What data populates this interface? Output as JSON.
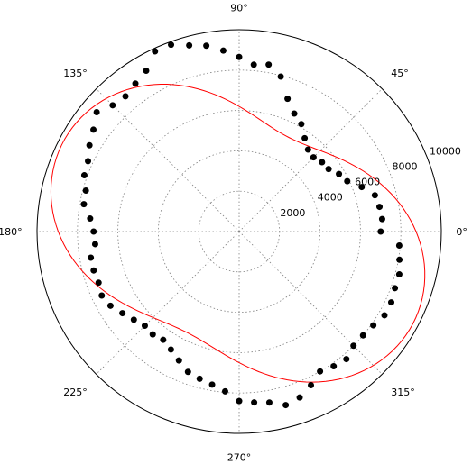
{
  "chart_data": {
    "type": "scatter",
    "projection": "polar",
    "title": "",
    "grid": true,
    "rmax": 10000,
    "angle_ticks": [
      0,
      45,
      90,
      135,
      180,
      225,
      270,
      315
    ],
    "angle_tick_labels": [
      "0°",
      "45°",
      "90°",
      "135°",
      "180°",
      "225°",
      "270°",
      "315°"
    ],
    "radial_ticks": [
      2000,
      4000,
      6000,
      8000,
      10000
    ],
    "radial_tick_labels": [
      "2000",
      "4000",
      "6000",
      "8000",
      "10000"
    ],
    "radial_label_angle_deg": 22.5,
    "series": [
      {
        "kind": "points",
        "color": "#000000",
        "theta_deg": [
          0,
          5,
          10,
          15,
          20,
          25,
          30,
          35,
          40,
          45,
          50,
          55,
          60,
          65,
          70,
          75,
          80,
          85,
          90,
          95,
          100,
          105,
          110,
          115,
          120,
          125,
          130,
          135,
          140,
          145,
          150,
          155,
          160,
          165,
          170,
          175,
          180,
          185,
          190,
          195,
          200,
          205,
          210,
          215,
          220,
          225,
          230,
          235,
          240,
          245,
          250,
          255,
          260,
          265,
          270,
          275,
          280,
          285,
          290,
          295,
          300,
          305,
          310,
          315,
          320,
          325,
          330,
          335,
          340,
          345,
          350,
          355
        ],
        "r": [
          7000,
          7100,
          7050,
          6950,
          6450,
          5900,
          5700,
          5400,
          5350,
          5200,
          5300,
          5650,
          6150,
          6450,
          7000,
          7950,
          8400,
          8300,
          8650,
          9000,
          9350,
          9550,
          9850,
          9850,
          9200,
          8950,
          8750,
          8850,
          9200,
          8800,
          8550,
          8250,
          8150,
          7850,
          7800,
          7400,
          7200,
          7150,
          7450,
          7450,
          7400,
          7500,
          7350,
          7050,
          6800,
          6600,
          6650,
          6550,
          6750,
          7050,
          7400,
          7550,
          7700,
          7950,
          8400,
          8500,
          8600,
          8900,
          8750,
          8400,
          8000,
          8150,
          8250,
          8000,
          8000,
          8100,
          8300,
          8300,
          8200,
          8200,
          8050,
          7950
        ]
      },
      {
        "kind": "fit",
        "color": "#ff0000",
        "coefficients": {
          "a0": 7600,
          "a1": -100,
          "b1": -150,
          "a2": 1250,
          "b2": -1750
        },
        "formula": "r = a0 + a1*cos(t) + b1*sin(t) + a2*cos(2t) + b2*sin(2t)"
      }
    ]
  }
}
